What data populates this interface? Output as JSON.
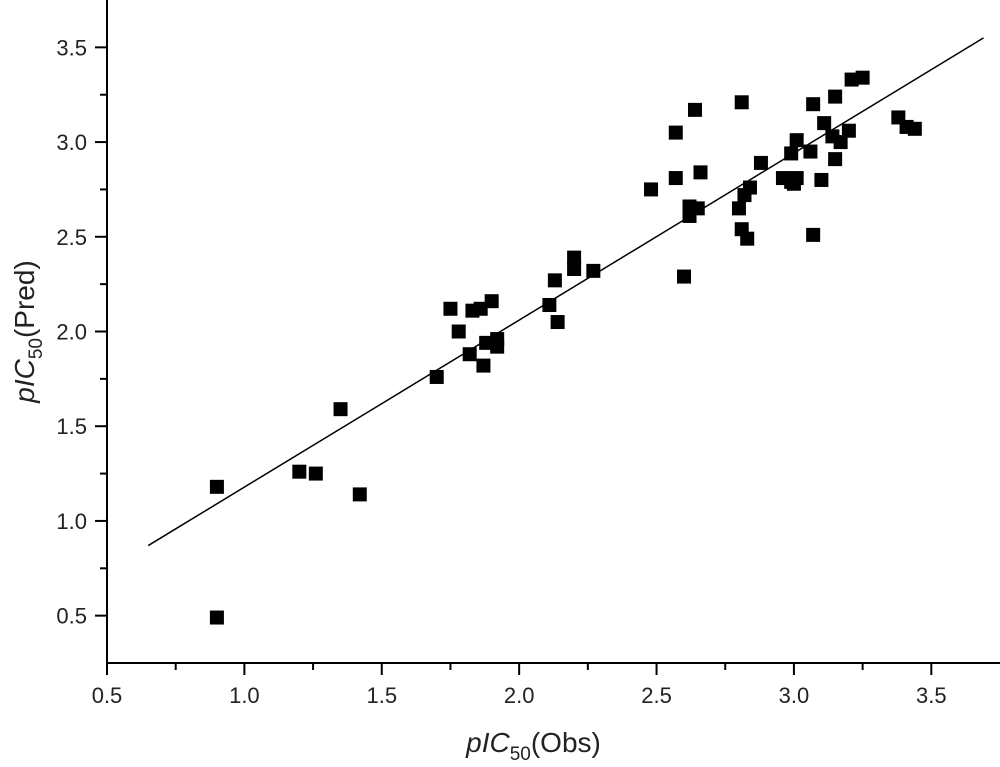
{
  "chart_data": {
    "type": "scatter",
    "title": "",
    "xlabel": {
      "prefix_italic": "pIC",
      "subscript": "50",
      "suffix": "(Obs)"
    },
    "ylabel": {
      "prefix_italic": "pIC",
      "subscript": "50",
      "suffix": "(Pred)"
    },
    "xlim": [
      0.5,
      3.75
    ],
    "ylim": [
      0.25,
      3.75
    ],
    "xticks": [
      "0.5",
      "1.0",
      "1.5",
      "2.0",
      "2.5",
      "3.0",
      "3.5"
    ],
    "yticks": [
      "0.5",
      "1.0",
      "1.5",
      "2.0",
      "2.5",
      "3.0",
      "3.5"
    ],
    "grid": false,
    "marker": "square",
    "marker_color": "#000000",
    "line_color": "#000000",
    "fit_line": {
      "x": [
        0.65,
        3.69
      ],
      "y": [
        0.87,
        3.55
      ]
    },
    "points": [
      [
        0.9,
        1.18
      ],
      [
        0.9,
        0.49
      ],
      [
        1.2,
        1.26
      ],
      [
        1.26,
        1.25
      ],
      [
        1.35,
        1.59
      ],
      [
        1.42,
        1.14
      ],
      [
        1.7,
        1.76
      ],
      [
        1.75,
        2.12
      ],
      [
        1.78,
        2.0
      ],
      [
        1.82,
        1.88
      ],
      [
        1.83,
        2.11
      ],
      [
        1.86,
        2.12
      ],
      [
        1.87,
        1.82
      ],
      [
        1.88,
        1.94
      ],
      [
        1.9,
        2.16
      ],
      [
        1.92,
        1.92
      ],
      [
        1.92,
        1.96
      ],
      [
        2.11,
        2.14
      ],
      [
        2.13,
        2.27
      ],
      [
        2.14,
        2.05
      ],
      [
        2.2,
        2.39
      ],
      [
        2.2,
        2.33
      ],
      [
        2.27,
        2.32
      ],
      [
        2.48,
        2.75
      ],
      [
        2.57,
        3.05
      ],
      [
        2.57,
        2.81
      ],
      [
        2.6,
        2.29
      ],
      [
        2.62,
        2.66
      ],
      [
        2.62,
        2.61
      ],
      [
        2.64,
        3.17
      ],
      [
        2.65,
        2.65
      ],
      [
        2.66,
        2.84
      ],
      [
        2.8,
        2.65
      ],
      [
        2.81,
        3.21
      ],
      [
        2.81,
        2.54
      ],
      [
        2.82,
        2.72
      ],
      [
        2.83,
        2.49
      ],
      [
        2.84,
        2.76
      ],
      [
        2.88,
        2.89
      ],
      [
        2.96,
        2.81
      ],
      [
        2.99,
        2.94
      ],
      [
        2.99,
        2.79
      ],
      [
        3.0,
        2.78
      ],
      [
        3.01,
        2.81
      ],
      [
        3.01,
        3.01
      ],
      [
        3.06,
        2.95
      ],
      [
        3.07,
        3.2
      ],
      [
        3.07,
        2.51
      ],
      [
        3.1,
        2.8
      ],
      [
        3.11,
        3.1
      ],
      [
        3.14,
        3.03
      ],
      [
        3.15,
        3.24
      ],
      [
        3.15,
        2.91
      ],
      [
        3.17,
        3.0
      ],
      [
        3.2,
        3.06
      ],
      [
        3.21,
        3.33
      ],
      [
        3.25,
        3.34
      ],
      [
        3.38,
        3.13
      ],
      [
        3.41,
        3.08
      ],
      [
        3.44,
        3.07
      ]
    ]
  }
}
